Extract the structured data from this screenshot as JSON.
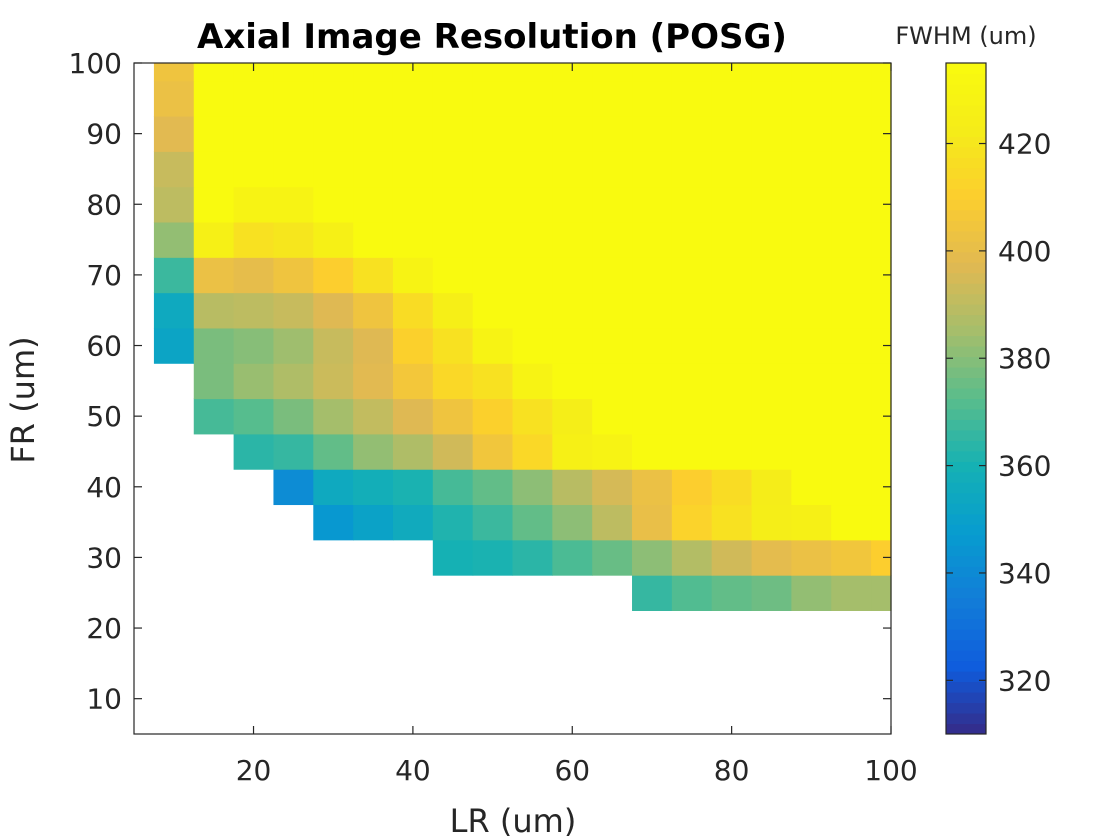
{
  "chart_data": {
    "type": "heatmap",
    "title": "Axial Image Resolution (POSG)",
    "xlabel": "LR (um)",
    "ylabel": "FR (um)",
    "colorbar_label": "FWHM (um)",
    "x": [
      10,
      15,
      20,
      25,
      30,
      35,
      40,
      45,
      50,
      55,
      60,
      65,
      70,
      75,
      80,
      85,
      90,
      95,
      100
    ],
    "y": [
      10,
      15,
      20,
      25,
      30,
      35,
      40,
      45,
      50,
      55,
      60,
      65,
      70,
      75,
      80,
      85,
      90,
      95,
      100
    ],
    "xlim": [
      5,
      100
    ],
    "ylim": [
      5,
      100
    ],
    "xticks": [
      20,
      40,
      60,
      80,
      100
    ],
    "yticks": [
      10,
      20,
      30,
      40,
      50,
      60,
      70,
      80,
      90,
      100
    ],
    "clim": [
      310,
      435
    ],
    "cbar_ticks": [
      320,
      340,
      360,
      380,
      400,
      420
    ],
    "colormap": "parula",
    "values": [
      [
        null,
        null,
        null,
        null,
        null,
        null,
        null,
        null,
        null,
        null,
        null,
        null,
        null,
        null,
        null,
        null,
        null,
        null,
        null
      ],
      [
        null,
        null,
        null,
        null,
        null,
        null,
        null,
        null,
        null,
        null,
        null,
        null,
        null,
        null,
        null,
        null,
        null,
        null,
        null
      ],
      [
        null,
        null,
        null,
        null,
        null,
        null,
        null,
        null,
        null,
        null,
        null,
        null,
        null,
        null,
        null,
        null,
        null,
        null,
        null
      ],
      [
        null,
        null,
        null,
        null,
        null,
        null,
        null,
        null,
        null,
        null,
        null,
        null,
        366,
        371,
        374,
        376,
        382,
        385,
        385
      ],
      [
        null,
        null,
        null,
        null,
        null,
        null,
        null,
        360,
        361,
        364,
        370,
        375,
        381,
        388,
        394,
        399,
        402,
        405,
        410
      ],
      [
        null,
        null,
        null,
        null,
        346,
        351,
        356,
        362,
        367,
        374,
        381,
        390,
        401,
        412,
        418,
        424,
        426,
        434,
        434
      ],
      [
        null,
        null,
        null,
        341,
        355,
        358,
        361,
        369,
        374,
        381,
        389,
        395,
        402,
        410,
        416,
        423,
        434,
        434,
        434
      ],
      [
        null,
        null,
        364,
        366,
        374,
        382,
        387,
        394,
        405,
        414,
        426,
        428,
        434,
        434,
        434,
        434,
        434,
        434,
        434
      ],
      [
        null,
        369,
        372,
        378,
        385,
        391,
        397,
        404,
        411,
        418,
        424,
        434,
        434,
        434,
        434,
        434,
        434,
        434,
        434
      ],
      [
        null,
        378,
        383,
        387,
        393,
        398,
        406,
        414,
        418,
        428,
        434,
        434,
        434,
        434,
        434,
        434,
        434,
        434,
        434
      ],
      [
        352,
        378,
        380,
        384,
        392,
        397,
        411,
        418,
        428,
        434,
        434,
        434,
        434,
        434,
        434,
        434,
        434,
        434,
        434
      ],
      [
        355,
        389,
        390,
        392,
        397,
        404,
        416,
        425,
        434,
        434,
        434,
        434,
        434,
        434,
        434,
        434,
        434,
        434,
        434
      ],
      [
        367,
        402,
        400,
        404,
        410,
        418,
        428,
        434,
        434,
        434,
        434,
        434,
        434,
        434,
        434,
        434,
        434,
        434,
        434
      ],
      [
        382,
        426,
        418,
        420,
        426,
        434,
        434,
        434,
        434,
        434,
        434,
        434,
        434,
        434,
        434,
        434,
        434,
        434,
        434
      ],
      [
        390,
        434,
        428,
        428,
        434,
        434,
        434,
        434,
        434,
        434,
        434,
        434,
        434,
        434,
        434,
        434,
        434,
        434,
        434
      ],
      [
        392,
        434,
        434,
        434,
        434,
        434,
        434,
        434,
        434,
        434,
        434,
        434,
        434,
        434,
        434,
        434,
        434,
        434,
        434
      ],
      [
        398,
        434,
        434,
        434,
        434,
        434,
        434,
        434,
        434,
        434,
        434,
        434,
        434,
        434,
        434,
        434,
        434,
        434,
        434
      ],
      [
        402,
        434,
        434,
        434,
        434,
        434,
        434,
        434,
        434,
        434,
        434,
        434,
        434,
        434,
        434,
        434,
        434,
        434,
        434
      ],
      [
        404,
        434,
        434,
        434,
        434,
        434,
        434,
        434,
        434,
        434,
        434,
        434,
        434,
        434,
        434,
        434,
        434,
        434,
        434
      ]
    ],
    "grid": false,
    "legend": "colorbar-right"
  }
}
